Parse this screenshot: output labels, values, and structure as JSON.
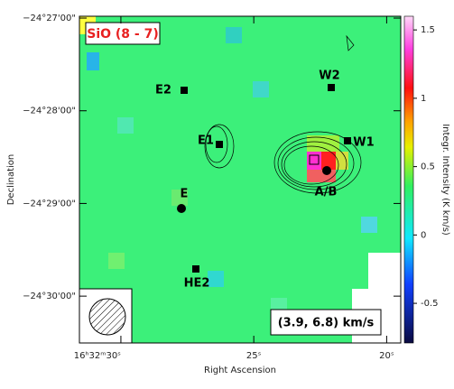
{
  "chart_data": {
    "type": "image",
    "title": "SiO (8 - 7)",
    "subtitle": "(3.9, 6.8) km/s",
    "x_label": "Right Ascension",
    "y_label": "Declination",
    "colorbar_label": "Integr. Intensity (K km/s)",
    "xlim": [
      31.56,
      19.47
    ],
    "xticks": [
      {
        "value": 30,
        "label": "16ʰ32ᵐ30ˢ"
      },
      {
        "value": 25,
        "label": "25ˢ"
      },
      {
        "value": 20,
        "label": "20ˢ"
      }
    ],
    "ylim": [
      -24.50842,
      -24.44967
    ],
    "yticks": [
      {
        "value": -24.45,
        "label": "−24°27'00\""
      },
      {
        "value": -24.466667,
        "label": "−24°28'00\""
      },
      {
        "value": -24.483333,
        "label": "−24°29'00\""
      },
      {
        "value": -24.5,
        "label": "−24°30'00\""
      }
    ],
    "clim": [
      -0.79,
      1.6
    ],
    "cticks": [
      -0.5,
      0,
      0.5,
      1,
      1.5
    ],
    "sources": [
      "E2",
      "E1",
      "W2",
      "W1",
      "A/B",
      "E",
      "HE2"
    ]
  }
}
